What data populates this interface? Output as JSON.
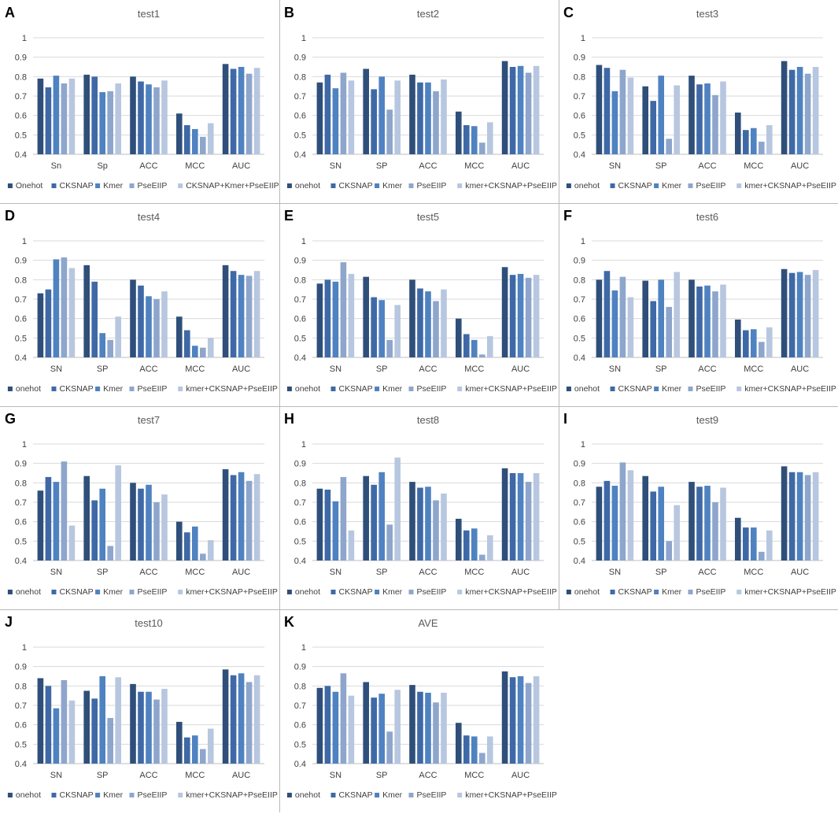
{
  "figure": {
    "series_colors": [
      "#2f4f7a",
      "#3f69a6",
      "#4f82c0",
      "#8ea6cc",
      "#b8c7e0"
    ],
    "bar_color_hint": "dark to light blue per series",
    "axis_label_color": "#404040",
    "title_color": "#595959",
    "panel_letter_color": "#000000"
  },
  "chart_data": [
    {
      "letter": "A",
      "type": "bar",
      "title": "test1",
      "categories": [
        "Sn",
        "Sp",
        "ACC",
        "MCC",
        "AUC"
      ],
      "ylim": [
        0.4,
        1.0
      ],
      "yticks": [
        "0.4",
        "0.5",
        "0.6",
        "0.7",
        "0.8",
        "0.9",
        "1"
      ],
      "legend": [
        "Onehot",
        "CKSNAP",
        "Kmer",
        "PseEIIP",
        "CKSNAP+Kmer+PseEIIP"
      ],
      "series": [
        {
          "name": "Onehot",
          "values": [
            0.79,
            0.81,
            0.8,
            0.61,
            0.865
          ]
        },
        {
          "name": "CKSNAP",
          "values": [
            0.745,
            0.8,
            0.775,
            0.55,
            0.84
          ]
        },
        {
          "name": "Kmer",
          "values": [
            0.805,
            0.72,
            0.76,
            0.53,
            0.85
          ]
        },
        {
          "name": "PseEIIP",
          "values": [
            0.765,
            0.725,
            0.745,
            0.49,
            0.815
          ]
        },
        {
          "name": "CKSNAP+Kmer+PseEIIP",
          "values": [
            0.79,
            0.765,
            0.78,
            0.56,
            0.845
          ]
        }
      ]
    },
    {
      "letter": "B",
      "type": "bar",
      "title": "test2",
      "categories": [
        "SN",
        "SP",
        "ACC",
        "MCC",
        "AUC"
      ],
      "ylim": [
        0.4,
        1.0
      ],
      "yticks": [
        "0.4",
        "0.5",
        "0.6",
        "0.7",
        "0.8",
        "0.9",
        "1"
      ],
      "legend": [
        "onehot",
        "CKSNAP",
        "Kmer",
        "PseEIIP",
        "kmer+CKSNAP+PseEIIP"
      ],
      "series": [
        {
          "name": "onehot",
          "values": [
            0.77,
            0.84,
            0.81,
            0.62,
            0.88
          ]
        },
        {
          "name": "CKSNAP",
          "values": [
            0.81,
            0.735,
            0.77,
            0.55,
            0.85
          ]
        },
        {
          "name": "Kmer",
          "values": [
            0.74,
            0.8,
            0.77,
            0.545,
            0.855
          ]
        },
        {
          "name": "PseEIIP",
          "values": [
            0.82,
            0.63,
            0.725,
            0.46,
            0.82
          ]
        },
        {
          "name": "kmer+CKSNAP+PseEIIP",
          "values": [
            0.78,
            0.78,
            0.785,
            0.565,
            0.855
          ]
        }
      ]
    },
    {
      "letter": "C",
      "type": "bar",
      "title": "test3",
      "categories": [
        "SN",
        "SP",
        "ACC",
        "MCC",
        "AUC"
      ],
      "ylim": [
        0.4,
        1.0
      ],
      "yticks": [
        "0.4",
        "0.5",
        "0.6",
        "0.7",
        "0.8",
        "0.9",
        "1"
      ],
      "legend": [
        "onehot",
        "CKSNAP",
        "Kmer",
        "PseEIIP",
        "kmer+CKSNAP+PseEIIP"
      ],
      "series": [
        {
          "name": "onehot",
          "values": [
            0.86,
            0.75,
            0.805,
            0.615,
            0.88
          ]
        },
        {
          "name": "CKSNAP",
          "values": [
            0.845,
            0.675,
            0.76,
            0.525,
            0.835
          ]
        },
        {
          "name": "Kmer",
          "values": [
            0.725,
            0.805,
            0.765,
            0.535,
            0.85
          ]
        },
        {
          "name": "PseEIIP",
          "values": [
            0.835,
            0.48,
            0.705,
            0.465,
            0.815
          ]
        },
        {
          "name": "kmer+CKSNAP+PseEIIP",
          "values": [
            0.795,
            0.755,
            0.775,
            0.55,
            0.85
          ]
        }
      ]
    },
    {
      "letter": "D",
      "type": "bar",
      "title": "test4",
      "categories": [
        "SN",
        "SP",
        "ACC",
        "MCC",
        "AUC"
      ],
      "ylim": [
        0.4,
        1.0
      ],
      "yticks": [
        "0.4",
        "0.5",
        "0.6",
        "0.7",
        "0.8",
        "0.9",
        "1"
      ],
      "legend": [
        "onehot",
        "CKSNAP",
        "Kmer",
        "PseEIIP",
        "kmer+CKSNAP+PseEIIP"
      ],
      "series": [
        {
          "name": "onehot",
          "values": [
            0.73,
            0.875,
            0.8,
            0.61,
            0.875
          ]
        },
        {
          "name": "CKSNAP",
          "values": [
            0.75,
            0.79,
            0.77,
            0.54,
            0.845
          ]
        },
        {
          "name": "Kmer",
          "values": [
            0.905,
            0.525,
            0.715,
            0.46,
            0.825
          ]
        },
        {
          "name": "PseEIIP",
          "values": [
            0.915,
            0.49,
            0.7,
            0.45,
            0.82
          ]
        },
        {
          "name": "kmer+CKSNAP+PseEIIP",
          "values": [
            0.86,
            0.61,
            0.74,
            0.5,
            0.845
          ]
        }
      ]
    },
    {
      "letter": "E",
      "type": "bar",
      "title": "test5",
      "categories": [
        "SN",
        "SP",
        "ACC",
        "MCC",
        "AUC"
      ],
      "ylim": [
        0.4,
        1.0
      ],
      "yticks": [
        "0.4",
        "0.5",
        "0.6",
        "0.7",
        "0.8",
        "0.9",
        "1"
      ],
      "legend": [
        "onehot",
        "CKSNAP",
        "Kmer",
        "PseEIIP",
        "kmer+CKSNAP+PseEIIP"
      ],
      "series": [
        {
          "name": "onehot",
          "values": [
            0.78,
            0.815,
            0.8,
            0.6,
            0.865
          ]
        },
        {
          "name": "CKSNAP",
          "values": [
            0.8,
            0.71,
            0.755,
            0.52,
            0.825
          ]
        },
        {
          "name": "Kmer",
          "values": [
            0.79,
            0.695,
            0.74,
            0.49,
            0.83
          ]
        },
        {
          "name": "PseEIIP",
          "values": [
            0.89,
            0.49,
            0.69,
            0.415,
            0.81
          ]
        },
        {
          "name": "kmer+CKSNAP+PseEIIP",
          "values": [
            0.83,
            0.67,
            0.75,
            0.51,
            0.825
          ]
        }
      ]
    },
    {
      "letter": "F",
      "type": "bar",
      "title": "test6",
      "categories": [
        "SN",
        "SP",
        "ACC",
        "MCC",
        "AUC"
      ],
      "ylim": [
        0.4,
        1.0
      ],
      "yticks": [
        "0.4",
        "0.5",
        "0.6",
        "0.7",
        "0.8",
        "0.9",
        "1"
      ],
      "legend": [
        "onehot",
        "CKSNAP",
        "Kmer",
        "PseEIIP",
        "kmer+CKSNAP+PseEIIP"
      ],
      "series": [
        {
          "name": "onehot",
          "values": [
            0.8,
            0.795,
            0.8,
            0.595,
            0.855
          ]
        },
        {
          "name": "CKSNAP",
          "values": [
            0.845,
            0.69,
            0.765,
            0.54,
            0.835
          ]
        },
        {
          "name": "Kmer",
          "values": [
            0.745,
            0.8,
            0.77,
            0.545,
            0.84
          ]
        },
        {
          "name": "PseEIIP",
          "values": [
            0.815,
            0.66,
            0.74,
            0.48,
            0.825
          ]
        },
        {
          "name": "kmer+CKSNAP+PseEIIP",
          "values": [
            0.71,
            0.84,
            0.775,
            0.555,
            0.85
          ]
        }
      ]
    },
    {
      "letter": "G",
      "type": "bar",
      "title": "test7",
      "categories": [
        "SN",
        "SP",
        "ACC",
        "MCC",
        "AUC"
      ],
      "ylim": [
        0.4,
        1.0
      ],
      "yticks": [
        "0.4",
        "0.5",
        "0.6",
        "0.7",
        "0.8",
        "0.9",
        "1"
      ],
      "legend": [
        "onehot",
        "CKSNAP",
        "Kmer",
        "PseEIIP",
        "kmer+CKSNAP+PseEIIP"
      ],
      "series": [
        {
          "name": "onehot",
          "values": [
            0.76,
            0.835,
            0.8,
            0.6,
            0.87
          ]
        },
        {
          "name": "CKSNAP",
          "values": [
            0.83,
            0.71,
            0.77,
            0.545,
            0.84
          ]
        },
        {
          "name": "Kmer",
          "values": [
            0.805,
            0.77,
            0.79,
            0.575,
            0.855
          ]
        },
        {
          "name": "PseEIIP",
          "values": [
            0.91,
            0.475,
            0.7,
            0.435,
            0.81
          ]
        },
        {
          "name": "kmer+CKSNAP+PseEIIP",
          "values": [
            0.58,
            0.89,
            0.74,
            0.505,
            0.845
          ]
        }
      ]
    },
    {
      "letter": "H",
      "type": "bar",
      "title": "test8",
      "categories": [
        "SN",
        "SP",
        "ACC",
        "MCC",
        "AUC"
      ],
      "ylim": [
        0.4,
        1.0
      ],
      "yticks": [
        "0.4",
        "0.5",
        "0.6",
        "0.7",
        "0.8",
        "0.9",
        "1"
      ],
      "legend": [
        "onehot",
        "CKSNAP",
        "Kmer",
        "PseEIIP",
        "kmer+CKSNAP+PseEIIP"
      ],
      "series": [
        {
          "name": "onehot",
          "values": [
            0.77,
            0.835,
            0.805,
            0.615,
            0.875
          ]
        },
        {
          "name": "CKSNAP",
          "values": [
            0.765,
            0.79,
            0.775,
            0.555,
            0.85
          ]
        },
        {
          "name": "Kmer",
          "values": [
            0.705,
            0.855,
            0.78,
            0.565,
            0.85
          ]
        },
        {
          "name": "PseEIIP",
          "values": [
            0.83,
            0.585,
            0.71,
            0.43,
            0.805
          ]
        },
        {
          "name": "kmer+CKSNAP+PseEIIP",
          "values": [
            0.555,
            0.93,
            0.745,
            0.53,
            0.85
          ]
        }
      ]
    },
    {
      "letter": "I",
      "type": "bar",
      "title": "test9",
      "categories": [
        "SN",
        "SP",
        "ACC",
        "MCC",
        "AUC"
      ],
      "ylim": [
        0.4,
        1.0
      ],
      "yticks": [
        "0.4",
        "0.5",
        "0.6",
        "0.7",
        "0.8",
        "0.9",
        "1"
      ],
      "legend": [
        "onehot",
        "CKSNAP",
        "Kmer",
        "PseEIIP",
        "kmer+CKSNAP+PseEIIP"
      ],
      "series": [
        {
          "name": "onehot",
          "values": [
            0.78,
            0.835,
            0.805,
            0.62,
            0.885
          ]
        },
        {
          "name": "CKSNAP",
          "values": [
            0.81,
            0.755,
            0.78,
            0.57,
            0.855
          ]
        },
        {
          "name": "Kmer",
          "values": [
            0.785,
            0.78,
            0.785,
            0.57,
            0.855
          ]
        },
        {
          "name": "PseEIIP",
          "values": [
            0.905,
            0.5,
            0.7,
            0.445,
            0.84
          ]
        },
        {
          "name": "kmer+CKSNAP+PseEIIP",
          "values": [
            0.865,
            0.685,
            0.775,
            0.555,
            0.855
          ]
        }
      ]
    },
    {
      "letter": "J",
      "type": "bar",
      "title": "test10",
      "categories": [
        "SN",
        "SP",
        "ACC",
        "MCC",
        "AUC"
      ],
      "ylim": [
        0.4,
        1.0
      ],
      "yticks": [
        "0.4",
        "0.5",
        "0.6",
        "0.7",
        "0.8",
        "0.9",
        "1"
      ],
      "legend": [
        "onehot",
        "CKSNAP",
        "Kmer",
        "PseEIIP",
        "kmer+CKSNAP+PseEIIP"
      ],
      "series": [
        {
          "name": "onehot",
          "values": [
            0.84,
            0.775,
            0.81,
            0.615,
            0.885
          ]
        },
        {
          "name": "CKSNAP",
          "values": [
            0.8,
            0.735,
            0.77,
            0.535,
            0.855
          ]
        },
        {
          "name": "Kmer",
          "values": [
            0.685,
            0.85,
            0.77,
            0.545,
            0.865
          ]
        },
        {
          "name": "PseEIIP",
          "values": [
            0.83,
            0.635,
            0.73,
            0.475,
            0.82
          ]
        },
        {
          "name": "kmer+CKSNAP+PseEIIP",
          "values": [
            0.725,
            0.845,
            0.785,
            0.58,
            0.855
          ]
        }
      ]
    },
    {
      "letter": "K",
      "type": "bar",
      "title": "AVE",
      "categories": [
        "SN",
        "SP",
        "ACC",
        "MCC",
        "AUC"
      ],
      "ylim": [
        0.4,
        1.0
      ],
      "yticks": [
        "0.4",
        "0.5",
        "0.6",
        "0.7",
        "0.8",
        "0.9",
        "1"
      ],
      "legend": [
        "onehot",
        "CKSNAP",
        "Kmer",
        "PseEIIP",
        "kmer+CKSNAP+PseEIIP"
      ],
      "series": [
        {
          "name": "onehot",
          "values": [
            0.79,
            0.82,
            0.805,
            0.61,
            0.875
          ]
        },
        {
          "name": "CKSNAP",
          "values": [
            0.8,
            0.74,
            0.77,
            0.545,
            0.845
          ]
        },
        {
          "name": "Kmer",
          "values": [
            0.77,
            0.76,
            0.765,
            0.54,
            0.85
          ]
        },
        {
          "name": "PseEIIP",
          "values": [
            0.865,
            0.565,
            0.715,
            0.455,
            0.815
          ]
        },
        {
          "name": "kmer+CKSNAP+PseEIIP",
          "values": [
            0.75,
            0.78,
            0.765,
            0.54,
            0.85
          ]
        }
      ]
    }
  ]
}
